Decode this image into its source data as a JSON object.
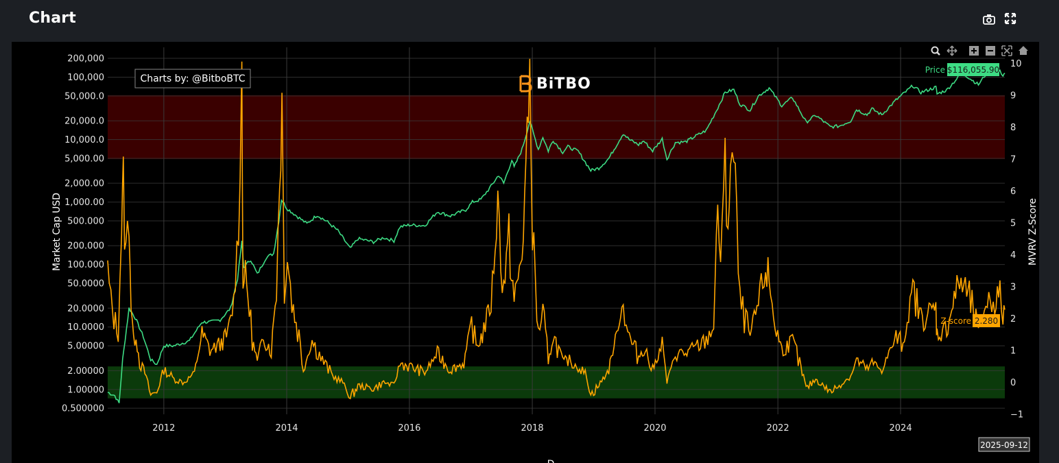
{
  "header": {
    "title": "Chart",
    "icons": [
      "camera-icon",
      "fullscreen-icon"
    ]
  },
  "toolbar": {
    "icons": [
      "zoom-icon",
      "pan-icon",
      "zoom-in-icon",
      "zoom-out-icon",
      "autoscale-icon",
      "reset-axes-icon"
    ]
  },
  "chart_data": {
    "type": "line",
    "watermark": "Charts by: @BitboBTC",
    "logo_text": "BiTBO",
    "colors": {
      "price": "#3ddc84",
      "zscore": "#ffa500",
      "red_band": "#3a0000",
      "green_band": "#0b3a0b",
      "background": "#000000",
      "grid": "#3a3a3a"
    },
    "xlabel": "D",
    "ylabel_left": "Market Cap USD",
    "ylabel_right": "MVRV Z-Score",
    "x_ticks": [
      "2012",
      "2014",
      "2016",
      "2018",
      "2020",
      "2022",
      "2024"
    ],
    "x_range": [
      "2011-02-01",
      "2025-09-12"
    ],
    "left_axis": {
      "scale": "log",
      "range": [
        0.4,
        300000
      ],
      "ticks": [
        {
          "v": 200000,
          "l": "200,000"
        },
        {
          "v": 100000,
          "l": "100,000"
        },
        {
          "v": 50000,
          "l": "50,000.0"
        },
        {
          "v": 20000,
          "l": "20,000.0"
        },
        {
          "v": 10000,
          "l": "10,000.0"
        },
        {
          "v": 5000,
          "l": "5,000.00"
        },
        {
          "v": 2000,
          "l": "2,000.00"
        },
        {
          "v": 1000,
          "l": "1,000.00"
        },
        {
          "v": 500,
          "l": "500.000"
        },
        {
          "v": 200,
          "l": "200.000"
        },
        {
          "v": 100,
          "l": "100.000"
        },
        {
          "v": 50,
          "l": "50.0000"
        },
        {
          "v": 20,
          "l": "20.0000"
        },
        {
          "v": 10,
          "l": "10.0000"
        },
        {
          "v": 5,
          "l": "5.00000"
        },
        {
          "v": 2,
          "l": "2.00000"
        },
        {
          "v": 1,
          "l": "1.00000"
        },
        {
          "v": 0.5,
          "l": "0.500000"
        }
      ]
    },
    "right_axis": {
      "range": [
        -1,
        10.5
      ],
      "ticks": [
        "10",
        "9",
        "8",
        "7",
        "6",
        "5",
        "4",
        "3",
        "2",
        "1",
        "0",
        "−1"
      ]
    },
    "bands": [
      {
        "name": "red-zone",
        "from": 7,
        "to": 9
      },
      {
        "name": "green-zone",
        "from": -0.5,
        "to": 0.5
      }
    ],
    "series": [
      {
        "name": "Price",
        "axis": "left",
        "last_label": "$116,055.90",
        "points": [
          [
            "2011-02-01",
            0.9
          ],
          [
            "2011-03-15",
            0.8
          ],
          [
            "2011-04-10",
            0.6
          ],
          [
            "2011-05-01",
            3
          ],
          [
            "2011-06-08",
            20
          ],
          [
            "2011-07-15",
            14
          ],
          [
            "2011-09-01",
            7
          ],
          [
            "2011-10-15",
            3
          ],
          [
            "2011-11-20",
            2.5
          ],
          [
            "2012-01-01",
            5
          ],
          [
            "2012-03-01",
            5
          ],
          [
            "2012-06-01",
            6
          ],
          [
            "2012-08-15",
            12
          ],
          [
            "2012-10-01",
            12
          ],
          [
            "2012-12-01",
            13
          ],
          [
            "2013-02-01",
            20
          ],
          [
            "2013-03-15",
            60
          ],
          [
            "2013-04-09",
            230
          ],
          [
            "2013-04-20",
            90
          ],
          [
            "2013-06-01",
            120
          ],
          [
            "2013-07-10",
            70
          ],
          [
            "2013-09-01",
            130
          ],
          [
            "2013-10-15",
            150
          ],
          [
            "2013-11-15",
            500
          ],
          [
            "2013-12-01",
            1100
          ],
          [
            "2014-01-01",
            800
          ],
          [
            "2014-03-01",
            600
          ],
          [
            "2014-05-01",
            450
          ],
          [
            "2014-07-01",
            620
          ],
          [
            "2014-09-01",
            480
          ],
          [
            "2014-11-01",
            350
          ],
          [
            "2015-01-14",
            180
          ],
          [
            "2015-03-01",
            260
          ],
          [
            "2015-06-01",
            230
          ],
          [
            "2015-08-01",
            270
          ],
          [
            "2015-10-01",
            240
          ],
          [
            "2015-11-05",
            400
          ],
          [
            "2016-01-01",
            430
          ],
          [
            "2016-04-01",
            420
          ],
          [
            "2016-06-15",
            700
          ],
          [
            "2016-09-01",
            600
          ],
          [
            "2016-12-01",
            750
          ],
          [
            "2017-01-10",
            1000
          ],
          [
            "2017-03-01",
            1100
          ],
          [
            "2017-05-01",
            1800
          ],
          [
            "2017-06-15",
            2700
          ],
          [
            "2017-07-15",
            2000
          ],
          [
            "2017-09-01",
            4700
          ],
          [
            "2017-09-15",
            3600
          ],
          [
            "2017-11-01",
            7000
          ],
          [
            "2017-12-17",
            19500
          ],
          [
            "2018-02-06",
            7000
          ],
          [
            "2018-03-05",
            11000
          ],
          [
            "2018-04-06",
            6600
          ],
          [
            "2018-05-05",
            9800
          ],
          [
            "2018-07-01",
            6300
          ],
          [
            "2018-08-01",
            7700
          ],
          [
            "2018-10-01",
            6500
          ],
          [
            "2018-12-15",
            3200
          ],
          [
            "2019-02-01",
            3500
          ],
          [
            "2019-04-01",
            5000
          ],
          [
            "2019-06-26",
            12500
          ],
          [
            "2019-08-01",
            10000
          ],
          [
            "2019-09-25",
            8300
          ],
          [
            "2019-10-26",
            9500
          ],
          [
            "2019-12-18",
            6600
          ],
          [
            "2020-02-13",
            10300
          ],
          [
            "2020-03-12",
            4900
          ],
          [
            "2020-05-01",
            9000
          ],
          [
            "2020-07-01",
            9200
          ],
          [
            "2020-09-01",
            11500
          ],
          [
            "2020-11-01",
            14000
          ],
          [
            "2020-12-31",
            29000
          ],
          [
            "2021-02-21",
            57000
          ],
          [
            "2021-04-14",
            63000
          ],
          [
            "2021-05-20",
            37000
          ],
          [
            "2021-07-20",
            29800
          ],
          [
            "2021-09-07",
            50000
          ],
          [
            "2021-11-10",
            67000
          ],
          [
            "2022-01-24",
            35000
          ],
          [
            "2022-03-29",
            47000
          ],
          [
            "2022-06-18",
            19000
          ],
          [
            "2022-08-14",
            24500
          ],
          [
            "2022-11-09",
            16000
          ],
          [
            "2023-01-01",
            16500
          ],
          [
            "2023-03-10",
            20000
          ],
          [
            "2023-04-14",
            30400
          ],
          [
            "2023-06-15",
            25000
          ],
          [
            "2023-07-15",
            31000
          ],
          [
            "2023-09-11",
            25000
          ],
          [
            "2023-12-05",
            43000
          ],
          [
            "2024-03-14",
            73000
          ],
          [
            "2024-05-01",
            57000
          ],
          [
            "2024-07-29",
            69000
          ],
          [
            "2024-08-05",
            54000
          ],
          [
            "2024-10-01",
            62000
          ],
          [
            "2024-12-17",
            106000
          ],
          [
            "2025-01-20",
            108000
          ],
          [
            "2025-04-08",
            76000
          ],
          [
            "2025-05-22",
            111000
          ],
          [
            "2025-07-14",
            122000
          ],
          [
            "2025-08-14",
            123000
          ],
          [
            "2025-09-01",
            108000
          ],
          [
            "2025-09-12",
            116055.9
          ]
        ]
      },
      {
        "name": "Z-score",
        "axis": "right",
        "last_label": "2.280",
        "points": [
          [
            "2011-02-01",
            3.5
          ],
          [
            "2011-02-20",
            2.5
          ],
          [
            "2011-03-10",
            2.0
          ],
          [
            "2011-04-05",
            1.6
          ],
          [
            "2011-04-25",
            5.0
          ],
          [
            "2011-05-05",
            6.2
          ],
          [
            "2011-05-20",
            4.0
          ],
          [
            "2011-06-08",
            5.5
          ],
          [
            "2011-06-20",
            2.5
          ],
          [
            "2011-07-05",
            1.2
          ],
          [
            "2011-07-20",
            1.6
          ],
          [
            "2011-08-10",
            0.6
          ],
          [
            "2011-09-10",
            0.3
          ],
          [
            "2011-10-15",
            -0.4
          ],
          [
            "2011-11-20",
            -0.3
          ],
          [
            "2012-01-01",
            0.4
          ],
          [
            "2012-03-01",
            0.1
          ],
          [
            "2012-05-01",
            0.0
          ],
          [
            "2012-07-01",
            0.3
          ],
          [
            "2012-08-15",
            1.5
          ],
          [
            "2012-10-01",
            1.0
          ],
          [
            "2012-12-01",
            1.2
          ],
          [
            "2013-01-15",
            1.5
          ],
          [
            "2013-02-20",
            2.5
          ],
          [
            "2013-03-20",
            5.0
          ],
          [
            "2013-04-09",
            9.5
          ],
          [
            "2013-04-16",
            3.5
          ],
          [
            "2013-05-15",
            2.8
          ],
          [
            "2013-06-10",
            1.3
          ],
          [
            "2013-07-10",
            0.6
          ],
          [
            "2013-08-15",
            1.5
          ],
          [
            "2013-10-01",
            1.0
          ],
          [
            "2013-11-01",
            3.0
          ],
          [
            "2013-11-20",
            6.5
          ],
          [
            "2013-12-04",
            8.7
          ],
          [
            "2013-12-18",
            3.0
          ],
          [
            "2014-01-05",
            4.0
          ],
          [
            "2014-02-01",
            2.5
          ],
          [
            "2014-03-15",
            1.5
          ],
          [
            "2014-04-10",
            0.4
          ],
          [
            "2014-06-01",
            1.3
          ],
          [
            "2014-08-01",
            0.7
          ],
          [
            "2014-10-01",
            0.2
          ],
          [
            "2014-12-01",
            0.0
          ],
          [
            "2015-01-14",
            -0.5
          ],
          [
            "2015-03-01",
            -0.1
          ],
          [
            "2015-06-01",
            -0.2
          ],
          [
            "2015-08-01",
            0.0
          ],
          [
            "2015-10-01",
            -0.1
          ],
          [
            "2015-11-05",
            0.6
          ],
          [
            "2016-01-01",
            0.5
          ],
          [
            "2016-04-01",
            0.3
          ],
          [
            "2016-06-15",
            0.9
          ],
          [
            "2016-09-01",
            0.4
          ],
          [
            "2016-11-20",
            0.6
          ],
          [
            "2017-01-05",
            1.9
          ],
          [
            "2017-02-01",
            1.1
          ],
          [
            "2017-03-10",
            1.5
          ],
          [
            "2017-05-01",
            2.5
          ],
          [
            "2017-06-10",
            5.5
          ],
          [
            "2017-07-15",
            3.0
          ],
          [
            "2017-08-15",
            4.5
          ],
          [
            "2017-09-15",
            2.5
          ],
          [
            "2017-11-01",
            4.0
          ],
          [
            "2017-12-17",
            9.4
          ],
          [
            "2018-01-10",
            4.0
          ],
          [
            "2018-02-06",
            1.5
          ],
          [
            "2018-03-05",
            2.3
          ],
          [
            "2018-04-06",
            0.5
          ],
          [
            "2018-05-05",
            1.5
          ],
          [
            "2018-07-01",
            0.6
          ],
          [
            "2018-08-01",
            0.7
          ],
          [
            "2018-10-01",
            0.5
          ],
          [
            "2018-11-20",
            0.2
          ],
          [
            "2018-12-15",
            -0.4
          ],
          [
            "2019-02-01",
            -0.1
          ],
          [
            "2019-04-01",
            0.4
          ],
          [
            "2019-06-26",
            2.5
          ],
          [
            "2019-08-01",
            1.4
          ],
          [
            "2019-09-25",
            0.8
          ],
          [
            "2019-10-26",
            1.1
          ],
          [
            "2019-12-18",
            0.4
          ],
          [
            "2020-02-13",
            1.2
          ],
          [
            "2020-03-12",
            0.0
          ],
          [
            "2020-05-01",
            0.9
          ],
          [
            "2020-07-01",
            0.9
          ],
          [
            "2020-09-01",
            1.1
          ],
          [
            "2020-11-01",
            1.3
          ],
          [
            "2020-12-15",
            1.8
          ],
          [
            "2021-01-08",
            5.5
          ],
          [
            "2021-01-25",
            4.0
          ],
          [
            "2021-02-21",
            6.5
          ],
          [
            "2021-03-10",
            5.0
          ],
          [
            "2021-03-25",
            7.0
          ],
          [
            "2021-04-14",
            6.8
          ],
          [
            "2021-05-01",
            5.0
          ],
          [
            "2021-05-20",
            2.5
          ],
          [
            "2021-07-20",
            1.4
          ],
          [
            "2021-09-07",
            2.5
          ],
          [
            "2021-10-20",
            3.5
          ],
          [
            "2021-11-10",
            3.2
          ],
          [
            "2021-12-15",
            1.8
          ],
          [
            "2022-01-24",
            1.0
          ],
          [
            "2022-03-29",
            1.3
          ],
          [
            "2022-05-10",
            0.6
          ],
          [
            "2022-06-18",
            -0.2
          ],
          [
            "2022-08-14",
            0.1
          ],
          [
            "2022-11-09",
            -0.3
          ],
          [
            "2023-01-01",
            -0.1
          ],
          [
            "2023-03-10",
            0.2
          ],
          [
            "2023-04-14",
            0.7
          ],
          [
            "2023-06-15",
            0.4
          ],
          [
            "2023-07-15",
            0.6
          ],
          [
            "2023-09-11",
            0.4
          ],
          [
            "2023-12-05",
            1.4
          ],
          [
            "2024-01-15",
            1.2
          ],
          [
            "2024-03-14",
            2.9
          ],
          [
            "2024-05-01",
            2.0
          ],
          [
            "2024-07-29",
            2.3
          ],
          [
            "2024-08-05",
            1.5
          ],
          [
            "2024-10-01",
            1.7
          ],
          [
            "2024-11-15",
            2.6
          ],
          [
            "2024-12-17",
            3.2
          ],
          [
            "2025-01-20",
            2.9
          ],
          [
            "2025-03-01",
            2.4
          ],
          [
            "2025-04-08",
            1.5
          ],
          [
            "2025-05-22",
            2.5
          ],
          [
            "2025-07-14",
            2.6
          ],
          [
            "2025-08-14",
            2.7
          ],
          [
            "2025-09-01",
            2.1
          ],
          [
            "2025-09-12",
            2.28
          ]
        ]
      }
    ],
    "hover_date": "2025-09-12"
  }
}
